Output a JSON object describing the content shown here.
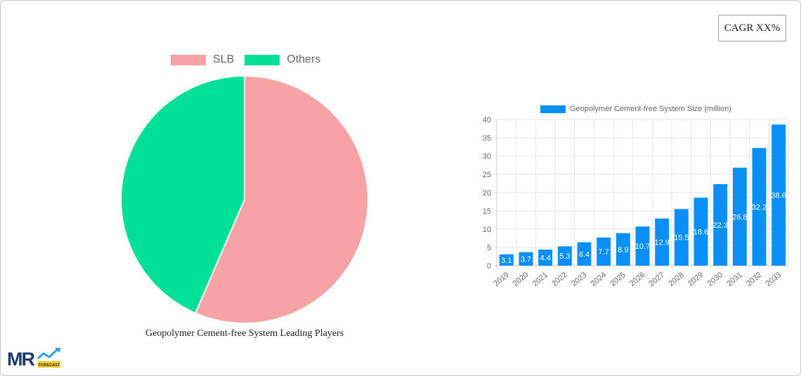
{
  "cagr_badge": {
    "label": "CAGR XX%"
  },
  "pie_chart": {
    "title": "Geopolymer Cement-free System Leading Players",
    "legend": [
      {
        "label": "SLB",
        "color": "#f7a3a6"
      },
      {
        "label": "Others",
        "color": "#00e096"
      }
    ]
  },
  "bar_chart": {
    "legend_label": "Geopolymer Cement-free System Size (million)",
    "bar_color": "#0a8ff5"
  },
  "logo": {
    "text": "MR",
    "subtext": "FORECAST"
  },
  "chart_data": [
    {
      "type": "pie",
      "title": "Geopolymer Cement-free System Leading Players",
      "labels": [
        "SLB",
        "Others"
      ],
      "values": [
        56.5,
        43.5
      ],
      "colors": [
        "#f7a3a6",
        "#00e096"
      ],
      "legend_position": "top"
    },
    {
      "type": "bar",
      "title": "",
      "series": [
        {
          "name": "Geopolymer Cement-free System Size (million)",
          "values": [
            3.1,
            3.7,
            4.4,
            5.3,
            6.4,
            7.7,
            8.9,
            10.7,
            12.9,
            15.5,
            18.6,
            22.3,
            26.8,
            32.2,
            38.6
          ]
        }
      ],
      "categories": [
        "2019",
        "2020",
        "2021",
        "2022",
        "2023",
        "2024",
        "2025",
        "2026",
        "2027",
        "2028",
        "2029",
        "2030",
        "2031",
        "2032",
        "2033"
      ],
      "xlabel": "",
      "ylabel": "",
      "ylim": [
        0,
        40
      ],
      "yticks": [
        0,
        5,
        10,
        15,
        20,
        25,
        30,
        35,
        40
      ],
      "grid": true,
      "data_labels": true,
      "legend_position": "top"
    }
  ]
}
